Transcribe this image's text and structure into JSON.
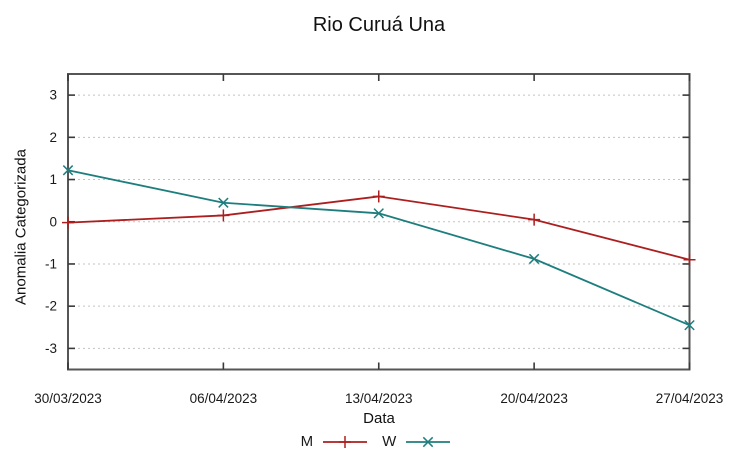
{
  "chart_data": {
    "type": "line",
    "title": "Rio Curuá Una",
    "xlabel": "Data",
    "ylabel": "Anomalia Categorizada",
    "categories": [
      "30/03/2023",
      "06/04/2023",
      "13/04/2023",
      "20/04/2023",
      "27/04/2023"
    ],
    "series": [
      {
        "name": "M",
        "color": "#ad1f1f",
        "marker": "plus",
        "values": [
          -0.02,
          0.15,
          0.6,
          0.05,
          -0.9
        ]
      },
      {
        "name": "W",
        "color": "#1e7e7e",
        "marker": "cross",
        "values": [
          1.22,
          0.45,
          0.2,
          -0.88,
          -2.45
        ]
      }
    ],
    "ylim": [
      -3.5,
      3.5
    ],
    "yticks": [
      -3,
      -2,
      -1,
      0,
      1,
      2,
      3
    ],
    "grid": "horizontal-dashed",
    "legend_position": "bottom-center",
    "colors": {
      "grid": "#c3c3c3",
      "border": "#565656",
      "tick": "#3a3a3a",
      "text": "#1a1a1a",
      "background": "#ffffff"
    }
  }
}
